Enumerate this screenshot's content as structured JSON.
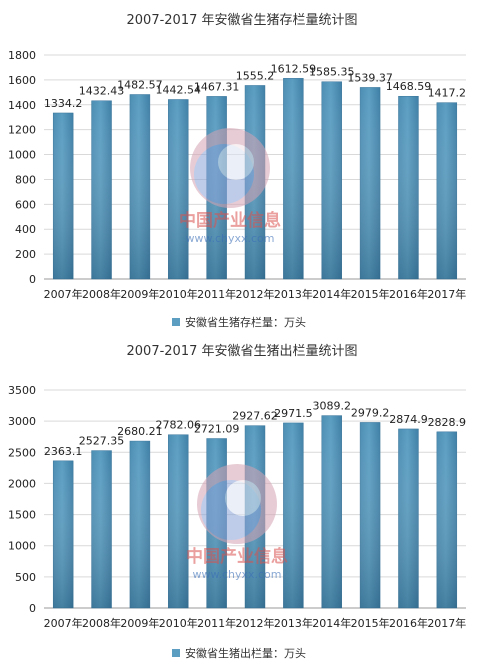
{
  "watermark": {
    "brand": "中国产业信息",
    "url": "www.chyxx.com"
  },
  "chart_data": [
    {
      "type": "bar",
      "title": "2007-2017 年安徽省生猪存栏量统计图",
      "categories": [
        "2007年",
        "2008年",
        "2009年",
        "2010年",
        "2011年",
        "2012年",
        "2013年",
        "2014年",
        "2015年",
        "2016年",
        "2017年"
      ],
      "series": [
        {
          "name": "安徽省生猪存栏量：万头",
          "values": [
            1334.2,
            1432.43,
            1482.57,
            1442.54,
            1467.31,
            1555.2,
            1612.59,
            1585.35,
            1539.37,
            1468.59,
            1417.2
          ]
        }
      ],
      "ylim": [
        0,
        1800
      ],
      "yticks": [
        0,
        200,
        400,
        600,
        800,
        1000,
        1200,
        1400,
        1600,
        1800
      ],
      "grid": true,
      "legend": "bottom",
      "bar_color": "#5b9ec2"
    },
    {
      "type": "bar",
      "title": "2007-2017 年安徽省生猪出栏量统计图",
      "categories": [
        "2007年",
        "2008年",
        "2009年",
        "2010年",
        "2011年",
        "2012年",
        "2013年",
        "2014年",
        "2015年",
        "2016年",
        "2017年"
      ],
      "series": [
        {
          "name": "安徽省生猪出栏量：万头",
          "values": [
            2363.1,
            2527.35,
            2680.21,
            2782.06,
            2721.09,
            2927.62,
            2971.5,
            3089.2,
            2979.2,
            2874.9,
            2828.9
          ]
        }
      ],
      "ylim": [
        0,
        3500
      ],
      "yticks": [
        0,
        500,
        1000,
        1500,
        2000,
        2500,
        3000,
        3500
      ],
      "grid": true,
      "legend": "bottom",
      "bar_color": "#5b9ec2"
    }
  ]
}
